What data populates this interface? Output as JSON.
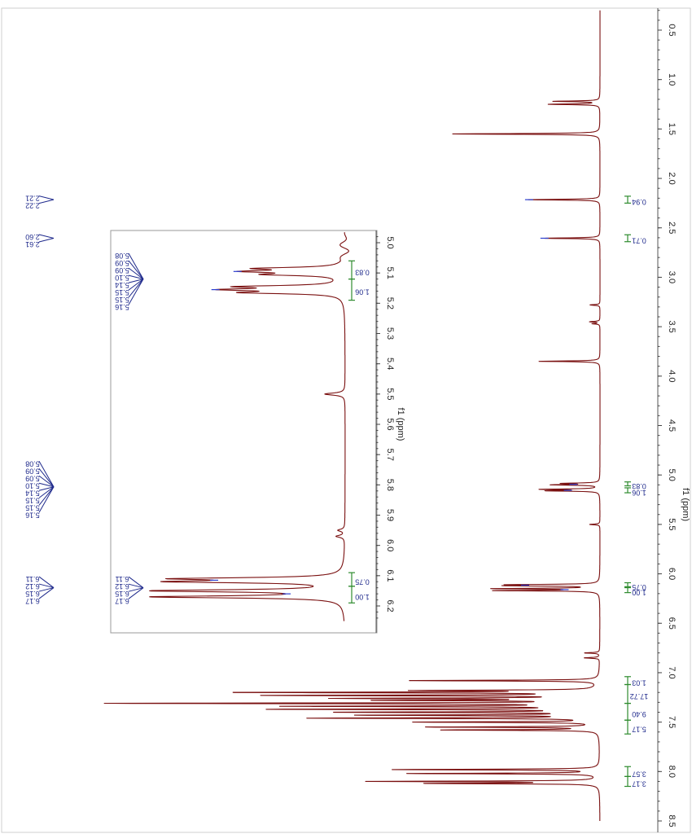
{
  "chart_data": {
    "type": "line",
    "orientation": "rotated-90",
    "axis": {
      "xlabel": "f1 (ppm)",
      "xlim": [
        0.3,
        8.5
      ],
      "ticks": [
        "0.5",
        "1.0",
        "1.5",
        "2.0",
        "2.5",
        "3.0",
        "3.5",
        "4.0",
        "4.5",
        "5.0",
        "5.5",
        "6.0",
        "6.5",
        "7.0",
        "7.5",
        "8.0",
        "8.5"
      ]
    },
    "peaks": [
      {
        "ppm": 1.22,
        "intensity": 0.09
      },
      {
        "ppm": 1.25,
        "intensity": 0.1
      },
      {
        "ppm": 1.55,
        "intensity": 0.29
      },
      {
        "ppm": 2.215,
        "intensity": 0.14
      },
      {
        "ppm": 2.605,
        "intensity": 0.11
      },
      {
        "ppm": 3.28,
        "intensity": 0.02
      },
      {
        "ppm": 3.45,
        "intensity": 0.02
      },
      {
        "ppm": 3.47,
        "intensity": 0.015
      },
      {
        "ppm": 3.85,
        "intensity": 0.12
      },
      {
        "ppm": 5.085,
        "intensity": 0.07
      },
      {
        "ppm": 5.1,
        "intensity": 0.09
      },
      {
        "ppm": 5.145,
        "intensity": 0.11
      },
      {
        "ppm": 5.16,
        "intensity": 0.1
      },
      {
        "ppm": 5.5,
        "intensity": 0.02
      },
      {
        "ppm": 6.11,
        "intensity": 0.16
      },
      {
        "ppm": 6.12,
        "intensity": 0.16
      },
      {
        "ppm": 6.15,
        "intensity": 0.2
      },
      {
        "ppm": 6.17,
        "intensity": 0.2
      },
      {
        "ppm": 6.8,
        "intensity": 0.03
      },
      {
        "ppm": 6.85,
        "intensity": 0.03
      },
      {
        "ppm": 7.08,
        "intensity": 0.38
      },
      {
        "ppm": 7.18,
        "intensity": 0.33
      },
      {
        "ppm": 7.2,
        "intensity": 0.7
      },
      {
        "ppm": 7.23,
        "intensity": 0.63
      },
      {
        "ppm": 7.26,
        "intensity": 0.48
      },
      {
        "ppm": 7.28,
        "intensity": 0.4
      },
      {
        "ppm": 7.31,
        "intensity": 0.94
      },
      {
        "ppm": 7.34,
        "intensity": 0.58
      },
      {
        "ppm": 7.37,
        "intensity": 0.62
      },
      {
        "ppm": 7.4,
        "intensity": 0.5
      },
      {
        "ppm": 7.43,
        "intensity": 0.45
      },
      {
        "ppm": 7.46,
        "intensity": 0.55
      },
      {
        "ppm": 7.5,
        "intensity": 0.35
      },
      {
        "ppm": 7.55,
        "intensity": 0.33
      },
      {
        "ppm": 7.58,
        "intensity": 0.3
      },
      {
        "ppm": 7.98,
        "intensity": 0.4
      },
      {
        "ppm": 8.02,
        "intensity": 0.37
      },
      {
        "ppm": 8.1,
        "intensity": 0.44
      },
      {
        "ppm": 8.12,
        "intensity": 0.33
      }
    ],
    "integrals": [
      {
        "from": 2.18,
        "to": 2.25,
        "label": "0.94"
      },
      {
        "from": 2.57,
        "to": 2.64,
        "label": "0.71"
      },
      {
        "from": 5.07,
        "to": 5.11,
        "label": "0.83"
      },
      {
        "from": 5.13,
        "to": 5.18,
        "label": "1.06"
      },
      {
        "from": 6.09,
        "to": 6.13,
        "label": "0.75"
      },
      {
        "from": 6.14,
        "to": 6.19,
        "label": "1.00"
      },
      {
        "from": 7.04,
        "to": 7.12,
        "label": "1.03"
      },
      {
        "from": 7.12,
        "to": 7.31,
        "label": "17.72"
      },
      {
        "from": 7.31,
        "to": 7.48,
        "label": "9.40"
      },
      {
        "from": 7.48,
        "to": 7.62,
        "label": "5.17"
      },
      {
        "from": 7.95,
        "to": 8.05,
        "label": "3.57"
      },
      {
        "from": 8.05,
        "to": 8.15,
        "label": "3.17"
      }
    ],
    "peak_label_groups": [
      {
        "labels": [
          "2.21",
          "2.22"
        ],
        "center": 2.215
      },
      {
        "labels": [
          "2.60",
          "2.61"
        ],
        "center": 2.605
      },
      {
        "labels": [
          "5.08",
          "5.09",
          "5.09",
          "5.10",
          "5.14",
          "5.15",
          "5.15",
          "5.16"
        ],
        "center": 5.12
      },
      {
        "labels": [
          "6.11",
          "6.12",
          "6.15",
          "6.17"
        ],
        "center": 6.14
      }
    ],
    "inset": {
      "xlabel": "f1 (ppm)",
      "xlim": [
        4.95,
        6.25
      ],
      "ticks": [
        "5.0",
        "5.1",
        "5.2",
        "5.3",
        "5.4",
        "5.5",
        "5.6",
        "5.7",
        "5.8",
        "5.9",
        "6.0",
        "6.1",
        "6.2"
      ],
      "peaks": [
        {
          "ppm": 5.085,
          "intensity": 0.46
        },
        {
          "ppm": 5.095,
          "intensity": 0.5
        },
        {
          "ppm": 5.105,
          "intensity": 0.4
        },
        {
          "ppm": 5.145,
          "intensity": 0.55
        },
        {
          "ppm": 5.155,
          "intensity": 0.6
        },
        {
          "ppm": 5.165,
          "intensity": 0.52
        },
        {
          "ppm": 5.5,
          "intensity": 0.12
        },
        {
          "ppm": 5.95,
          "intensity": 0.04
        },
        {
          "ppm": 5.97,
          "intensity": 0.05
        },
        {
          "ppm": 6.11,
          "intensity": 0.9
        },
        {
          "ppm": 6.12,
          "intensity": 0.92
        },
        {
          "ppm": 6.15,
          "intensity": 1.1
        },
        {
          "ppm": 6.17,
          "intensity": 1.12
        }
      ],
      "integrals": [
        {
          "from": 5.06,
          "to": 5.12,
          "label": "0.83"
        },
        {
          "from": 5.12,
          "to": 5.19,
          "label": "1.06"
        },
        {
          "from": 6.09,
          "to": 6.135,
          "label": "0.75"
        },
        {
          "from": 6.135,
          "to": 6.19,
          "label": "1.00"
        }
      ],
      "peak_label_groups": [
        {
          "labels": [
            "5.08",
            "5.09",
            "5.09",
            "5.10",
            "5.14",
            "5.15",
            "5.15",
            "5.16"
          ],
          "center": 5.12
        },
        {
          "labels": [
            "6.11",
            "6.12",
            "6.15",
            "6.17"
          ],
          "center": 6.14
        }
      ]
    },
    "colors": {
      "spectrum": "#7a1010",
      "peak_tip": "#2b3fd0",
      "labels": "#1f2a8c",
      "integral": "#2e8b2e"
    }
  }
}
